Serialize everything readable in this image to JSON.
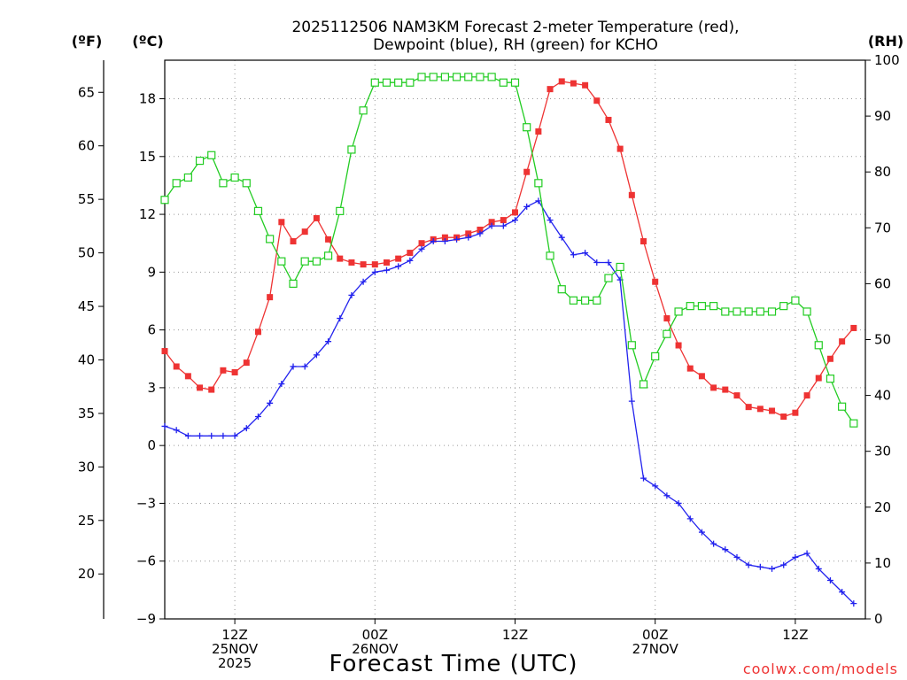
{
  "chart_data": {
    "type": "line",
    "title_line1": "2025112506 NAM3KM Forecast 2-meter Temperature (red),",
    "title_line2": "Dewpoint (blue), RH (green) for KCHO",
    "xlabel": "Forecast Time (UTC)",
    "credit": "coolwx.com/models",
    "x_range_hours": [
      0,
      60
    ],
    "x_ticks": [
      {
        "hour": 6,
        "lines": [
          "12Z",
          "25NOV",
          "2025"
        ]
      },
      {
        "hour": 18,
        "lines": [
          "00Z",
          "26NOV"
        ]
      },
      {
        "hour": 30,
        "lines": [
          "12Z"
        ]
      },
      {
        "hour": 42,
        "lines": [
          "00Z",
          "27NOV"
        ]
      },
      {
        "hour": 54,
        "lines": [
          "12Z"
        ]
      }
    ],
    "axes": {
      "celsius": {
        "unit_label": "(ºC)",
        "range": [
          -9,
          20
        ],
        "ticks": [
          -9,
          -6,
          -3,
          0,
          3,
          6,
          9,
          12,
          15,
          18
        ],
        "tick_labels": [
          "−9",
          "−6",
          "−3",
          "0",
          "3",
          "6",
          "9",
          "12",
          "15",
          "18"
        ]
      },
      "fahrenheit": {
        "unit_label": "(ºF)",
        "ticks": [
          20,
          25,
          30,
          35,
          40,
          45,
          50,
          55,
          60,
          65
        ],
        "tick_labels": [
          "20",
          "25",
          "30",
          "35",
          "40",
          "45",
          "50",
          "55",
          "60",
          "65"
        ]
      },
      "rh": {
        "unit_label": "(RH)",
        "range": [
          0,
          100
        ],
        "ticks": [
          0,
          10,
          20,
          30,
          40,
          50,
          60,
          70,
          80,
          90,
          100
        ],
        "tick_labels": [
          "0",
          "10",
          "20",
          "30",
          "40",
          "50",
          "60",
          "70",
          "80",
          "90",
          "100"
        ]
      }
    },
    "series": [
      {
        "name": "Temperature",
        "units": "°C",
        "axis": "celsius",
        "color": "#ee3333",
        "marker": "filled-square",
        "values": [
          4.9,
          4.1,
          3.6,
          3.0,
          2.9,
          3.9,
          3.8,
          4.3,
          5.9,
          7.7,
          11.6,
          10.6,
          11.1,
          11.8,
          10.7,
          9.7,
          9.5,
          9.4,
          9.4,
          9.5,
          9.7,
          10.0,
          10.5,
          10.7,
          10.8,
          10.8,
          11.0,
          11.2,
          11.6,
          11.7,
          12.1,
          14.2,
          16.3,
          18.5,
          18.9,
          18.8,
          18.7,
          17.9,
          16.9,
          15.4,
          13.0,
          10.6,
          8.5,
          6.6,
          5.2,
          4.0,
          3.6,
          3.0,
          2.9,
          2.6,
          2.0,
          1.9,
          1.8,
          1.5,
          1.7,
          2.6,
          3.5,
          4.5,
          5.4,
          6.1
        ]
      },
      {
        "name": "Dewpoint",
        "units": "°C",
        "axis": "celsius",
        "color": "#2222ee",
        "marker": "plus",
        "values": [
          1.0,
          0.8,
          0.5,
          0.5,
          0.5,
          0.5,
          0.5,
          0.9,
          1.5,
          2.2,
          3.2,
          4.1,
          4.1,
          4.7,
          5.4,
          6.6,
          7.8,
          8.5,
          9.0,
          9.1,
          9.3,
          9.6,
          10.2,
          10.6,
          10.6,
          10.7,
          10.8,
          11.0,
          11.4,
          11.4,
          11.7,
          12.4,
          12.7,
          11.7,
          10.8,
          9.9,
          10.0,
          9.5,
          9.5,
          8.6,
          2.3,
          -1.7,
          -2.1,
          -2.6,
          -3.0,
          -3.8,
          -4.5,
          -5.1,
          -5.4,
          -5.8,
          -6.2,
          -6.3,
          -6.4,
          -6.2,
          -5.8,
          -5.6,
          -6.4,
          -7.0,
          -7.6,
          -8.2
        ]
      },
      {
        "name": "Relative Humidity",
        "units": "%",
        "axis": "rh",
        "color": "#22cc22",
        "marker": "open-square",
        "values": [
          75,
          78,
          79,
          82,
          83,
          78,
          79,
          78,
          73,
          68,
          64,
          60,
          64,
          64,
          65,
          73,
          84,
          91,
          96,
          96,
          96,
          96,
          97,
          97,
          97,
          97,
          97,
          97,
          97,
          96,
          96,
          88,
          78,
          65,
          59,
          57,
          57,
          57,
          61,
          63,
          49,
          42,
          47,
          51,
          55,
          56,
          56,
          56,
          55,
          55,
          55,
          55,
          55,
          56,
          57,
          55,
          49,
          43,
          38,
          35
        ]
      }
    ]
  }
}
